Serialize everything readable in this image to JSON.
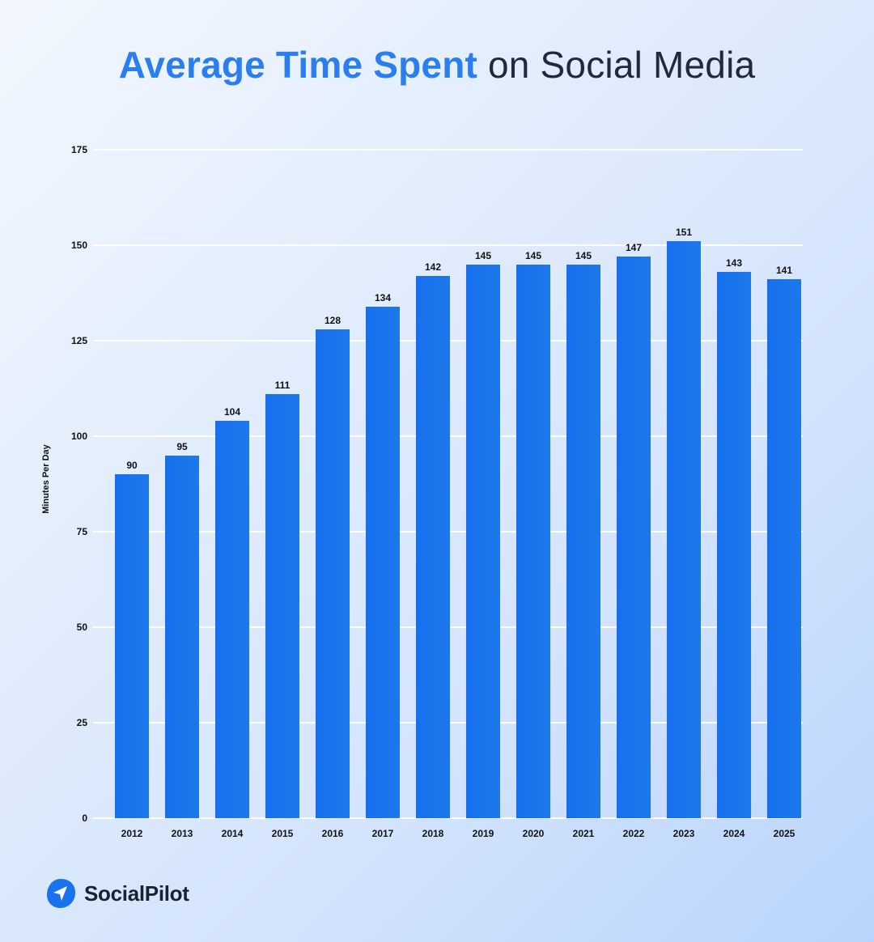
{
  "title": {
    "highlight": "Average Time Spent",
    "rest": " on Social Media"
  },
  "brand": {
    "name": "SocialPilot",
    "icon": "paper-plane-icon",
    "color": "#1a73ee"
  },
  "colors": {
    "bar": "#1a73ee",
    "title_highlight": "#2a7ef0",
    "title_rest": "#1f2a3c",
    "gridline": "#ffffff"
  },
  "chart_data": {
    "type": "bar",
    "title": "Average Time Spent on Social Media",
    "xlabel": "",
    "ylabel": "Minutes Per Day",
    "ylim": [
      0,
      175
    ],
    "yticks": [
      0,
      25,
      50,
      75,
      100,
      125,
      150,
      175
    ],
    "grid": true,
    "legend": null,
    "categories": [
      "2012",
      "2013",
      "2014",
      "2015",
      "2016",
      "2017",
      "2018",
      "2019",
      "2020",
      "2021",
      "2022",
      "2023",
      "2024",
      "2025"
    ],
    "values": [
      90,
      95,
      104,
      111,
      128,
      134,
      142,
      145,
      145,
      145,
      147,
      151,
      143,
      141
    ],
    "data_labels": [
      "90",
      "95",
      "104",
      "111",
      "128",
      "134",
      "142",
      "145",
      "145",
      "145",
      "147",
      "151",
      "143",
      "141"
    ]
  }
}
